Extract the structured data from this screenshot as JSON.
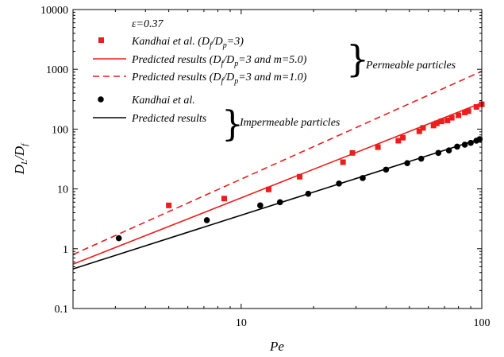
{
  "chart_data": {
    "type": "scatter",
    "title": "",
    "xlabel": "Pe",
    "ylabel_main": "D",
    "ylabel_sub1": "L",
    "ylabel_mid": "/D",
    "ylabel_sub2": "f",
    "xscale": "log",
    "yscale": "log",
    "xlim": [
      2,
      100
    ],
    "ylim": [
      0.1,
      10000
    ],
    "x_ticks": [
      10,
      100
    ],
    "x_tick_labels": [
      "10",
      "100"
    ],
    "y_ticks": [
      0.1,
      1,
      10,
      100,
      1000,
      10000
    ],
    "y_tick_labels": [
      "0.1",
      "1",
      "10",
      "100",
      "1000",
      "10000"
    ],
    "grid": false,
    "legend_position": "top-left",
    "annotation": "ε=0.37",
    "series": [
      {
        "name": "Kandhai et al. (Df/Dp=3)",
        "kind": "scatter",
        "marker": "square",
        "color": "#ee1c1c",
        "x": [
          5.0,
          8.5,
          13.0,
          17.5,
          26.5,
          29.0,
          37.0,
          45.0,
          47.0,
          55.0,
          57.0,
          63.0,
          65.0,
          68.0,
          72.0,
          75.0,
          80.0,
          85.0,
          88.0,
          95.0,
          100.0
        ],
        "y": [
          5.3,
          6.9,
          9.8,
          16.0,
          28.0,
          40.0,
          50.0,
          64.0,
          72.0,
          92.0,
          105.0,
          115.0,
          125.0,
          135.0,
          140.0,
          155.0,
          170.0,
          190.0,
          200.0,
          235.0,
          260.0
        ]
      },
      {
        "name": "Predicted results (Df/Dp=3 and m=5.0)",
        "kind": "line",
        "dash": "solid",
        "color": "#ee1c1c",
        "x": [
          2,
          100
        ],
        "y": [
          0.55,
          275
        ]
      },
      {
        "name": "Predicted results (Df/Dp=3 and m=1.0)",
        "kind": "line",
        "dash": "dashed",
        "color": "#ee1c1c",
        "x": [
          2,
          100
        ],
        "y": [
          0.8,
          930
        ]
      },
      {
        "name": "Kandhai et al.",
        "kind": "scatter",
        "marker": "circle",
        "color": "#000000",
        "x": [
          3.1,
          7.2,
          12.0,
          14.5,
          19.0,
          25.5,
          32.0,
          40.0,
          49.0,
          56.0,
          66.0,
          73.0,
          79.0,
          85.0,
          90.0,
          95.0,
          98.0
        ],
        "y": [
          1.5,
          3.0,
          5.3,
          6.0,
          8.3,
          12.3,
          15.2,
          21.0,
          27.0,
          32.0,
          40.0,
          44.0,
          51.0,
          55.0,
          59.0,
          64.0,
          68.0
        ]
      },
      {
        "name": "Predicted results",
        "kind": "line",
        "dash": "solid",
        "color": "#000000",
        "x": [
          2,
          100
        ],
        "y": [
          0.46,
          70
        ]
      }
    ],
    "legend": {
      "items": [
        {
          "kind": "square",
          "color": "#ee1c1c",
          "parts": [
            "Kandhai et al. (D",
            "f",
            "/D",
            "p",
            "=3)"
          ]
        },
        {
          "kind": "solid",
          "color": "#ee1c1c",
          "parts": [
            "Predicted results (D",
            "f",
            "/D",
            "p",
            "=3 and m=5.0)"
          ]
        },
        {
          "kind": "dashed",
          "color": "#ee1c1c",
          "parts": [
            "Predicted results (D",
            "f",
            "/D",
            "p",
            "=3 and m=1.0)"
          ]
        },
        {
          "kind": "circle",
          "color": "#000000",
          "parts": [
            "Kandhai et al."
          ]
        },
        {
          "kind": "solid",
          "color": "#000000",
          "parts": [
            "Predicted results"
          ]
        }
      ],
      "group_labels": [
        "Permeable particles",
        "Impermeable particles"
      ]
    }
  }
}
